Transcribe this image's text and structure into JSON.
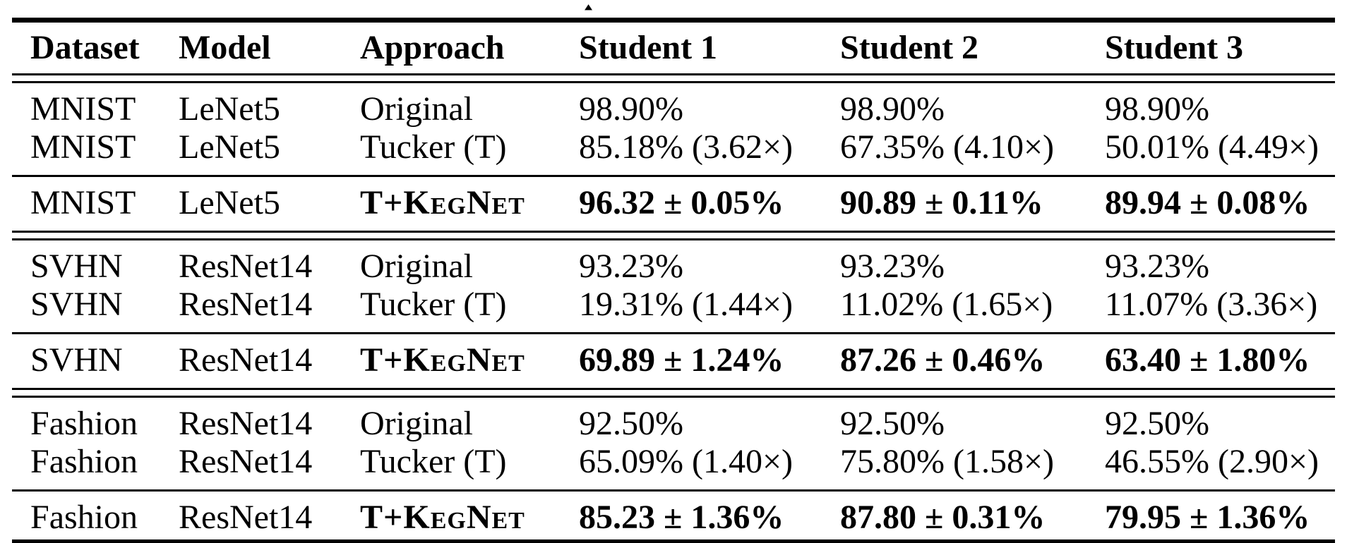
{
  "page": {
    "background_color": "#ffffff",
    "text_color": "#000000"
  },
  "decoration": {
    "caret_artifact": "▴"
  },
  "table": {
    "columns": [
      "Dataset",
      "Model",
      "Approach",
      "Student 1",
      "Student 2",
      "Student 3"
    ],
    "rows": [
      {
        "dataset": "MNIST",
        "model": "LeNet5",
        "approach": "Original",
        "student1": "98.90%",
        "student2": "98.90%",
        "student3": "98.90%"
      },
      {
        "dataset": "MNIST",
        "model": "LeNet5",
        "approach": "Tucker (T)",
        "student1": "85.18% (3.62×)",
        "student2": "67.35% (4.10×)",
        "student3": "50.01% (4.49×)"
      },
      {
        "dataset": "MNIST",
        "model": "LeNet5",
        "approach": "T+KegNet",
        "student1": "96.32 ± 0.05%",
        "student2": "90.89 ± 0.11%",
        "student3": "89.94 ± 0.08%"
      },
      {
        "dataset": "SVHN",
        "model": "ResNet14",
        "approach": "Original",
        "student1": "93.23%",
        "student2": "93.23%",
        "student3": "93.23%"
      },
      {
        "dataset": "SVHN",
        "model": "ResNet14",
        "approach": "Tucker (T)",
        "student1": "19.31% (1.44×)",
        "student2": "11.02% (1.65×)",
        "student3": "11.07% (3.36×)"
      },
      {
        "dataset": "SVHN",
        "model": "ResNet14",
        "approach": "T+KegNet",
        "student1": "69.89 ± 1.24%",
        "student2": "87.26 ± 0.46%",
        "student3": "63.40 ± 1.80%"
      },
      {
        "dataset": "Fashion",
        "model": "ResNet14",
        "approach": "Original",
        "student1": "92.50%",
        "student2": "92.50%",
        "student3": "92.50%"
      },
      {
        "dataset": "Fashion",
        "model": "ResNet14",
        "approach": "Tucker (T)",
        "student1": "65.09% (1.40×)",
        "student2": "75.80% (1.58×)",
        "student3": "46.55% (2.90×)"
      },
      {
        "dataset": "Fashion",
        "model": "ResNet14",
        "approach": "T+KegNet",
        "student1": "85.23 ± 1.36%",
        "student2": "87.80 ± 0.31%",
        "student3": "79.95 ± 1.36%"
      }
    ]
  }
}
